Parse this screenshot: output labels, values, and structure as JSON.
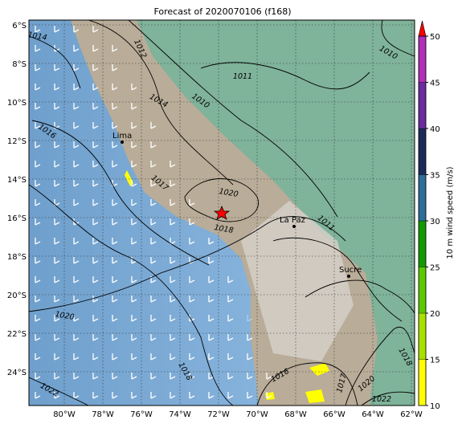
{
  "title": "Forecast of 2020070106 (f168)",
  "lat_labels": [
    "6°S",
    "8°S",
    "10°S",
    "12°S",
    "14°S",
    "16°S",
    "18°S",
    "20°S",
    "22°S",
    "24°S"
  ],
  "lon_labels": [
    "80°W",
    "78°W",
    "76°W",
    "74°W",
    "72°W",
    "70°W",
    "68°W",
    "66°W",
    "64°W",
    "62°W"
  ],
  "colorbar": {
    "label": "10 m wind speed (m/s)",
    "ticks": [
      "10",
      "15",
      "20",
      "25",
      "30",
      "35",
      "40",
      "45",
      "50"
    ]
  },
  "cities": [
    "Lima",
    "La Paz",
    "Sucre"
  ],
  "contour_labels": [
    "1014",
    "1012",
    "1010",
    "1011",
    "1014",
    "1010",
    "1016",
    "1020",
    "1017",
    "1018",
    "1011",
    "1020",
    "1018",
    "1016",
    "1017",
    "1020",
    "1022",
    "1022",
    "1018"
  ]
}
